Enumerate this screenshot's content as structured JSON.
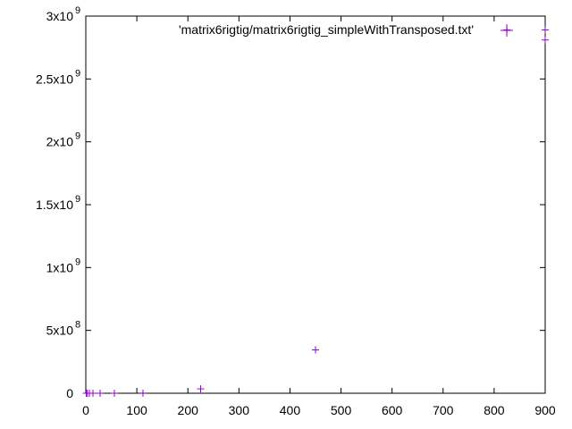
{
  "chart_data": {
    "type": "scatter",
    "legend_placement": "top-center",
    "grid": false,
    "xlim": [
      0,
      900
    ],
    "ylim": [
      0,
      3000000000
    ],
    "x_ticks": [
      {
        "value": 0,
        "label": "0"
      },
      {
        "value": 100,
        "label": "100"
      },
      {
        "value": 200,
        "label": "200"
      },
      {
        "value": 300,
        "label": "300"
      },
      {
        "value": 400,
        "label": "400"
      },
      {
        "value": 500,
        "label": "500"
      },
      {
        "value": 600,
        "label": "600"
      },
      {
        "value": 700,
        "label": "700"
      },
      {
        "value": 800,
        "label": "800"
      },
      {
        "value": 900,
        "label": "900"
      }
    ],
    "y_ticks": [
      {
        "value": 0,
        "mantissa": "0",
        "exp": ""
      },
      {
        "value": 500000000,
        "mantissa": "5x10",
        "exp": "8"
      },
      {
        "value": 1000000000,
        "mantissa": "1x10",
        "exp": "9"
      },
      {
        "value": 1500000000,
        "mantissa": "1.5x10",
        "exp": "9"
      },
      {
        "value": 2000000000,
        "mantissa": "2x10",
        "exp": "9"
      },
      {
        "value": 2500000000,
        "mantissa": "2.5x10",
        "exp": "9"
      },
      {
        "value": 3000000000,
        "mantissa": "3x10",
        "exp": "9"
      }
    ],
    "series": [
      {
        "name": "'matrix6rigtig/matrix6rigtig_simpleWithTransposed.txt'",
        "color": "#9400d3",
        "marker": "plus",
        "points": [
          {
            "x": 1,
            "y": 0
          },
          {
            "x": 3,
            "y": 0
          },
          {
            "x": 7,
            "y": 0
          },
          {
            "x": 14,
            "y": 0
          },
          {
            "x": 28,
            "y": 0
          },
          {
            "x": 56,
            "y": 0
          },
          {
            "x": 112,
            "y": 1000000
          },
          {
            "x": 225,
            "y": 35000000
          },
          {
            "x": 450,
            "y": 345000000
          },
          {
            "x": 825,
            "y": 2890000000
          },
          {
            "x": 900,
            "y": 2890000000
          },
          {
            "x": 900,
            "y": 2810000000
          }
        ]
      }
    ]
  }
}
